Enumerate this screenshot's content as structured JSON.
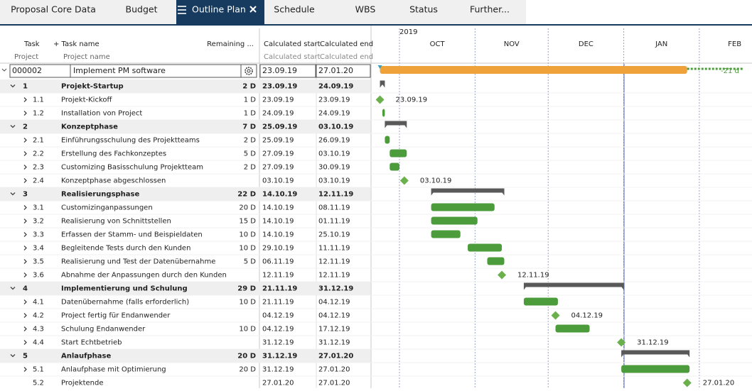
{
  "tabs": [
    "Proposal Core Data",
    "Budget",
    "Outline Plan",
    "Schedule",
    "WBS",
    "Status",
    "Further..."
  ],
  "columns": {
    "task": "Task",
    "task_name": "+ Task name",
    "remaining": "Remaining ...",
    "calc_start": "Calculated start",
    "calc_end": "Calculated end",
    "project": "Project",
    "project_name": "Project name",
    "calc_start_sub": "Calculated start",
    "calc_end_sub": "Calculated end"
  },
  "timeline": {
    "year": "2019",
    "months": [
      "OCT",
      "NOV",
      "DEC",
      "JAN",
      "FEB"
    ]
  },
  "project": {
    "id": "000002",
    "name": "Implement PM software",
    "start": "23.09.19",
    "end": "27.01.20",
    "delay_label": "-21 d"
  },
  "rows": [
    {
      "id": "1",
      "name": "Projekt-Startup",
      "remaining": "2 D",
      "start": "23.09.19",
      "end": "24.09.19"
    },
    {
      "id": "1.1",
      "name": "Projekt-Kickoff",
      "remaining": "1 D",
      "start": "23.09.19",
      "end": "23.09.19",
      "milestone": true
    },
    {
      "id": "1.2",
      "name": "Installation von Project",
      "remaining": "1 D",
      "start": "24.09.19",
      "end": "24.09.19"
    },
    {
      "id": "2",
      "name": "Konzeptphase",
      "remaining": "7 D",
      "start": "25.09.19",
      "end": "03.10.19"
    },
    {
      "id": "2.1",
      "name": "Einführungsschulung des Projektteams",
      "remaining": "2 D",
      "start": "25.09.19",
      "end": "26.09.19"
    },
    {
      "id": "2.2",
      "name": "Erstellung des Fachkonzeptes",
      "remaining": "5 D",
      "start": "27.09.19",
      "end": "03.10.19"
    },
    {
      "id": "2.3",
      "name": "Customizing Basisschulung Projektteam",
      "remaining": "2 D",
      "start": "27.09.19",
      "end": "30.09.19"
    },
    {
      "id": "2.4",
      "name": "Konzeptphase abgeschlossen",
      "start": "03.10.19",
      "end": "03.10.19",
      "milestone": true
    },
    {
      "id": "3",
      "name": "Realisierungsphase",
      "remaining": "22 D",
      "start": "14.10.19",
      "end": "12.11.19"
    },
    {
      "id": "3.1",
      "name": "Customizinganpassungen",
      "remaining": "20 D",
      "start": "14.10.19",
      "end": "08.11.19"
    },
    {
      "id": "3.2",
      "name": "Realisierung von Schnittstellen",
      "remaining": "15 D",
      "start": "14.10.19",
      "end": "01.11.19"
    },
    {
      "id": "3.3",
      "name": "Erfassen der Stamm- und Beispieldaten",
      "remaining": "10 D",
      "start": "14.10.19",
      "end": "25.10.19"
    },
    {
      "id": "3.4",
      "name": "Begleitende Tests durch den Kunden",
      "remaining": "10 D",
      "start": "29.10.19",
      "end": "11.11.19"
    },
    {
      "id": "3.5",
      "name": "Realisierung und Test der Datenübernahme",
      "remaining": "5 D",
      "start": "06.11.19",
      "end": "12.11.19"
    },
    {
      "id": "3.6",
      "name": "Abnahme der Anpassungen durch den Kunden",
      "start": "12.11.19",
      "end": "12.11.19",
      "milestone": true
    },
    {
      "id": "4",
      "name": "Implementierung und Schulung",
      "remaining": "29 D",
      "start": "21.11.19",
      "end": "31.12.19"
    },
    {
      "id": "4.1",
      "name": "Datenübernahme (falls erforderlich)",
      "remaining": "10 D",
      "start": "21.11.19",
      "end": "04.12.19"
    },
    {
      "id": "4.2",
      "name": "Project fertig für Endanwender",
      "start": "04.12.19",
      "end": "04.12.19",
      "milestone": true
    },
    {
      "id": "4.3",
      "name": "Schulung Endanwender",
      "remaining": "10 D",
      "start": "04.12.19",
      "end": "17.12.19"
    },
    {
      "id": "4.4",
      "name": "Start Echtbetrieb",
      "start": "31.12.19",
      "end": "31.12.19",
      "milestone": true
    },
    {
      "id": "5",
      "name": "Anlaufphase",
      "remaining": "20 D",
      "start": "31.12.19",
      "end": "27.01.20"
    },
    {
      "id": "5.1",
      "name": "Anlaufphase mit Optimierung",
      "remaining": "20 D",
      "start": "31.12.19",
      "end": "27.01.20"
    },
    {
      "id": "5.2",
      "name": "Projektende",
      "start": "27.01.20",
      "end": "27.01.20",
      "milestone": true
    }
  ]
}
